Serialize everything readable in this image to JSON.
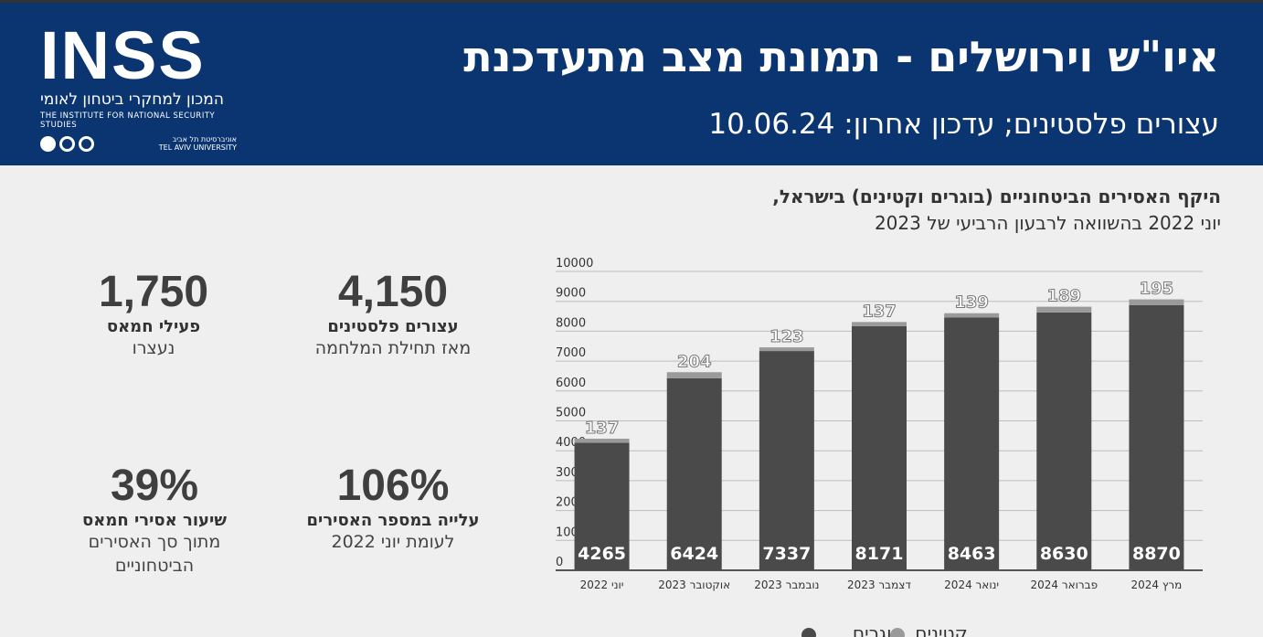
{
  "header": {
    "title": "איו\"ש וירושלים - תמונת מצב מתעדכנת",
    "subtitle": "עצורים פלסטינים; עדכון אחרון: 10.06.24"
  },
  "logo": {
    "mark": "INSS",
    "hebrew": "המכון למחקרי ביטחון לאומי",
    "english": "THE INSTITUTE FOR NATIONAL SECURITY STUDIES",
    "tau_en": "TEL AVIV UNIVERSITY",
    "tau_he": "אוניברסיטת תל אביב"
  },
  "stats": [
    {
      "value": "4,150",
      "label": "עצורים פלסטינים",
      "sub": "מאז תחילת המלחמה"
    },
    {
      "value": "1,750",
      "label": "פעילי חמאס",
      "sub": "נעצרו"
    },
    {
      "value": "106%",
      "label": "עלייה במספר האסירים",
      "sub": "לעומת יוני 2022"
    },
    {
      "value": "39%",
      "label": "שיעור אסירי חמאס",
      "sub": "מתוך סך האסירים הביטחוניים"
    }
  ],
  "chart_data": {
    "type": "bar",
    "stacked": true,
    "title": "היקף האסירים הביטחוניים (בוגרים וקטינים) בישראל,",
    "subtitle": "יוני 2022 בהשוואה לרבעון הרביעי של 2023",
    "categories": [
      "יוני 2022",
      "אוקטובר 2023",
      "נובמבר 2023",
      "דצמבר 2023",
      "ינואר 2024",
      "פברואר 2024",
      "מרץ 2024"
    ],
    "series": [
      {
        "name": "בוגרים",
        "color": "#4a4a4a",
        "values": [
          4265,
          6424,
          7337,
          8171,
          8463,
          8630,
          8870
        ]
      },
      {
        "name": "קטינים",
        "color": "#9a9a9a",
        "values": [
          137,
          204,
          123,
          137,
          139,
          189,
          195
        ]
      }
    ],
    "ylim": [
      0,
      10000
    ],
    "yticks": [
      "0",
      "1000",
      "2000",
      "3000",
      "4000",
      "5000",
      "6000",
      "7000",
      "8000",
      "9000",
      "10000"
    ],
    "grid": true,
    "legend": "bottom"
  }
}
